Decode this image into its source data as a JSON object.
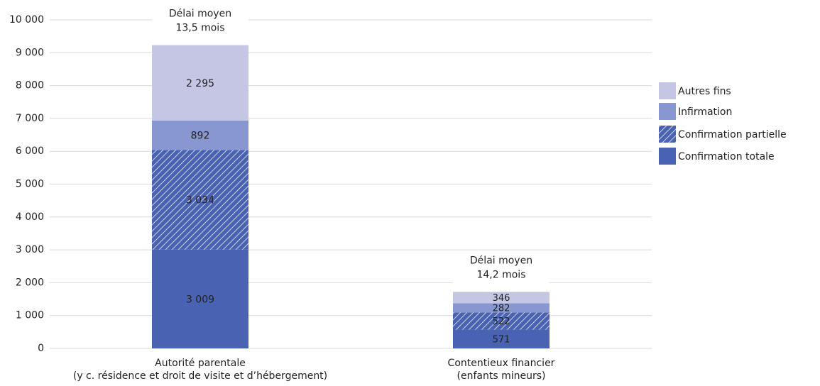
{
  "chart_data": {
    "type": "stacked_bar",
    "categories": [
      [
        "Autorité parentale",
        "(y c. résidence et droit de visite et d’hébergement)"
      ],
      [
        "Contentieux financier",
        "(enfants mineurs)"
      ]
    ],
    "annotations": [
      [
        "Délai moyen",
        "13,5 mois"
      ],
      [
        "Délai moyen",
        "14,2 mois"
      ]
    ],
    "series": [
      {
        "name": "Confirmation totale",
        "color": "#4a62b2",
        "values": [
          3009,
          571
        ],
        "value_labels": [
          "3 009",
          "571"
        ]
      },
      {
        "name": "Confirmation partielle",
        "color": "#4a62b2",
        "hatch": true,
        "values": [
          3034,
          522
        ],
        "value_labels": [
          "3 034",
          "522"
        ]
      },
      {
        "name": "Infirmation",
        "color": "#8897cf",
        "values": [
          892,
          282
        ],
        "value_labels": [
          "892",
          "282"
        ]
      },
      {
        "name": "Autres fins",
        "color": "#c4c6e4",
        "values": [
          2295,
          346
        ],
        "value_labels": [
          "2 295",
          "346"
        ]
      }
    ],
    "ylim": [
      0,
      10000
    ],
    "yticks": [
      0,
      {
        "value": 1000,
        "label": "1 000"
      },
      {
        "value": 2000,
        "label": "2 000"
      },
      {
        "value": 3000,
        "label": "3 000"
      },
      {
        "value": 4000,
        "label": "4 000"
      },
      {
        "value": 5000,
        "label": "5 000"
      },
      {
        "value": 6000,
        "label": "6 000"
      },
      {
        "value": 7000,
        "label": "7 000"
      },
      {
        "value": 8000,
        "label": "8 000"
      },
      {
        "value": 9000,
        "label": "9 000"
      },
      {
        "value": 10000,
        "label": "10 000"
      }
    ],
    "grid": true,
    "legend": "right"
  }
}
